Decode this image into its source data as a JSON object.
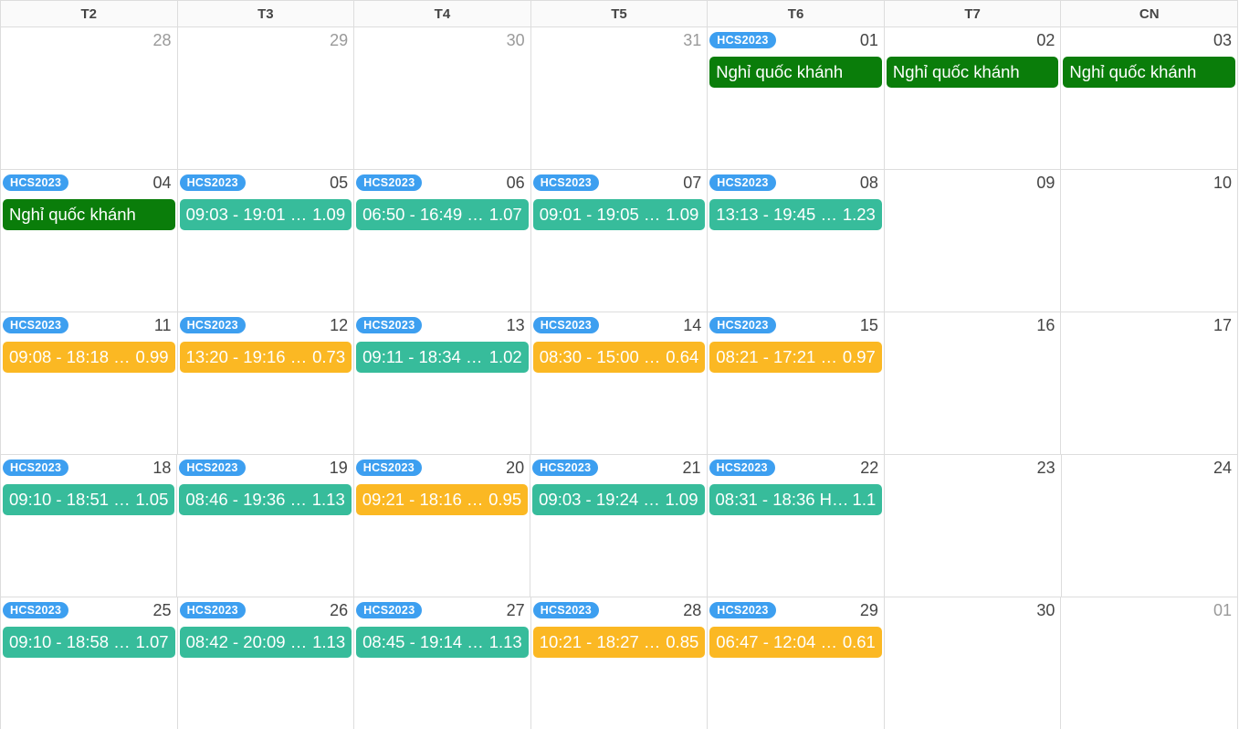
{
  "colors": {
    "holiday": "#0a7d0a",
    "normal": "#37bc9b",
    "short": "#fbb823",
    "tag": "#3d9ff0"
  },
  "weekdays": [
    "T2",
    "T3",
    "T4",
    "T5",
    "T6",
    "T7",
    "CN"
  ],
  "weeks": [
    {
      "days": [
        {
          "num": "28",
          "other": true
        },
        {
          "num": "29",
          "other": true
        },
        {
          "num": "30",
          "other": true
        },
        {
          "num": "31",
          "other": true
        },
        {
          "num": "01",
          "tag": "HCS2023",
          "event": {
            "type": "holiday",
            "text": "Nghỉ quốc khánh"
          }
        },
        {
          "num": "02",
          "event": {
            "type": "holiday",
            "text": "Nghỉ quốc khánh"
          }
        },
        {
          "num": "03",
          "event": {
            "type": "holiday",
            "text": "Nghỉ quốc khánh"
          }
        }
      ]
    },
    {
      "days": [
        {
          "num": "04",
          "tag": "HCS2023",
          "event": {
            "type": "holiday",
            "text": "Nghỉ quốc khánh"
          }
        },
        {
          "num": "05",
          "tag": "HCS2023",
          "event": {
            "type": "normal",
            "text": "09:03 - 19:01 …",
            "value": "1.09"
          }
        },
        {
          "num": "06",
          "tag": "HCS2023",
          "event": {
            "type": "normal",
            "text": "06:50 - 16:49 …",
            "value": "1.07"
          }
        },
        {
          "num": "07",
          "tag": "HCS2023",
          "event": {
            "type": "normal",
            "text": "09:01 - 19:05 …",
            "value": "1.09"
          }
        },
        {
          "num": "08",
          "tag": "HCS2023",
          "event": {
            "type": "normal",
            "text": "13:13 - 19:45 …",
            "value": "1.23"
          }
        },
        {
          "num": "09"
        },
        {
          "num": "10"
        }
      ]
    },
    {
      "days": [
        {
          "num": "11",
          "tag": "HCS2023",
          "event": {
            "type": "short",
            "text": "09:08 - 18:18 …",
            "value": "0.99"
          }
        },
        {
          "num": "12",
          "tag": "HCS2023",
          "event": {
            "type": "short",
            "text": "13:20 - 19:16 …",
            "value": "0.73"
          }
        },
        {
          "num": "13",
          "tag": "HCS2023",
          "event": {
            "type": "normal",
            "text": "09:11 - 18:34 …",
            "value": "1.02"
          }
        },
        {
          "num": "14",
          "tag": "HCS2023",
          "event": {
            "type": "short",
            "text": "08:30 - 15:00 …",
            "value": "0.64"
          }
        },
        {
          "num": "15",
          "tag": "HCS2023",
          "event": {
            "type": "short",
            "text": "08:21 - 17:21 …",
            "value": "0.97"
          }
        },
        {
          "num": "16"
        },
        {
          "num": "17"
        }
      ]
    },
    {
      "days": [
        {
          "num": "18",
          "tag": "HCS2023",
          "event": {
            "type": "normal",
            "text": "09:10 - 18:51 …",
            "value": "1.05"
          }
        },
        {
          "num": "19",
          "tag": "HCS2023",
          "event": {
            "type": "normal",
            "text": "08:46 - 19:36 …",
            "value": "1.13"
          }
        },
        {
          "num": "20",
          "tag": "HCS2023",
          "event": {
            "type": "short",
            "text": "09:21 - 18:16 …",
            "value": "0.95"
          }
        },
        {
          "num": "21",
          "tag": "HCS2023",
          "event": {
            "type": "normal",
            "text": "09:03 - 19:24 …",
            "value": "1.09"
          }
        },
        {
          "num": "22",
          "tag": "HCS2023",
          "event": {
            "type": "normal",
            "text": "08:31 - 18:36 H…",
            "value": "1.1"
          }
        },
        {
          "num": "23"
        },
        {
          "num": "24"
        }
      ]
    },
    {
      "days": [
        {
          "num": "25",
          "tag": "HCS2023",
          "event": {
            "type": "normal",
            "text": "09:10 - 18:58 …",
            "value": "1.07"
          }
        },
        {
          "num": "26",
          "tag": "HCS2023",
          "event": {
            "type": "normal",
            "text": "08:42 - 20:09 …",
            "value": "1.13"
          }
        },
        {
          "num": "27",
          "tag": "HCS2023",
          "event": {
            "type": "normal",
            "text": "08:45 - 19:14 …",
            "value": "1.13"
          }
        },
        {
          "num": "28",
          "tag": "HCS2023",
          "event": {
            "type": "short",
            "text": "10:21 - 18:27 …",
            "value": "0.85"
          }
        },
        {
          "num": "29",
          "tag": "HCS2023",
          "event": {
            "type": "short",
            "text": "06:47 - 12:04 …",
            "value": "0.61"
          }
        },
        {
          "num": "30"
        },
        {
          "num": "01",
          "other": true
        }
      ]
    }
  ]
}
